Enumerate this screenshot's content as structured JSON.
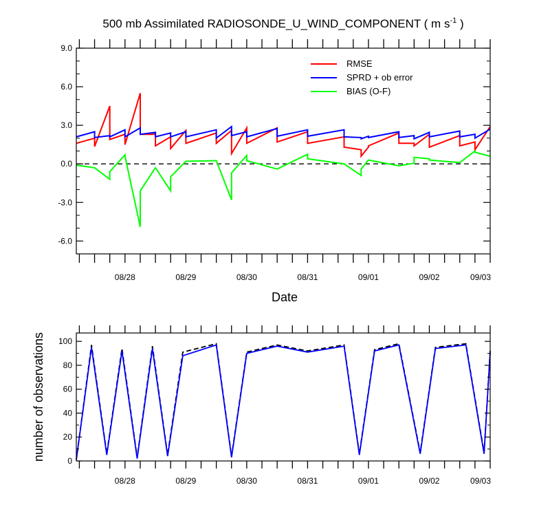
{
  "chart_data": [
    {
      "type": "line",
      "title_parts": {
        "main": "500 mb Assimilated RADIOSONDE_U_WIND_COMPONENT ( m s",
        "sup": "-1",
        "end": " )"
      },
      "xlabel": "Date",
      "ylabel": "",
      "xlim": [
        27.2,
        34.0
      ],
      "ylim": [
        -7.0,
        9.0
      ],
      "yticks": [
        9.0,
        6.0,
        3.0,
        0.0,
        -3.0,
        -6.0
      ],
      "ytick_labels": [
        "9.0",
        "6.0",
        "3.0",
        "0.0",
        "-3.0",
        "-6.0"
      ],
      "xticks": [
        28,
        29,
        30,
        31,
        32,
        33,
        34
      ],
      "xtick_labels": [
        "08/28",
        "08/29",
        "08/30",
        "08/31",
        "09/01",
        "09/02",
        "09/03"
      ],
      "zero_line": true,
      "legend_position": "top-right",
      "series": [
        {
          "name": "RMSE",
          "color": "#ff0000",
          "points": [
            [
              27.2,
              1.6
            ],
            [
              27.5,
              2.0
            ],
            [
              27.5,
              1.35
            ],
            [
              27.75,
              4.5
            ],
            [
              27.75,
              1.9
            ],
            [
              28.0,
              2.3
            ],
            [
              28.0,
              1.5
            ],
            [
              28.25,
              5.5
            ],
            [
              28.25,
              2.3
            ],
            [
              28.5,
              2.3
            ],
            [
              28.5,
              1.4
            ],
            [
              28.75,
              2.1
            ],
            [
              28.75,
              1.2
            ],
            [
              29.0,
              2.6
            ],
            [
              29.0,
              1.6
            ],
            [
              29.5,
              2.4
            ],
            [
              29.5,
              1.6
            ],
            [
              29.75,
              2.6
            ],
            [
              29.75,
              0.8
            ],
            [
              30.0,
              2.8
            ],
            [
              30.0,
              1.6
            ],
            [
              30.5,
              2.8
            ],
            [
              30.5,
              1.7
            ],
            [
              31.0,
              2.5
            ],
            [
              31.0,
              1.6
            ],
            [
              31.6,
              2.1
            ],
            [
              31.6,
              1.3
            ],
            [
              31.88,
              1.1
            ],
            [
              31.88,
              0.6
            ],
            [
              32.0,
              1.3
            ],
            [
              32.0,
              1.4
            ],
            [
              32.5,
              2.4
            ],
            [
              32.5,
              1.6
            ],
            [
              32.75,
              1.6
            ],
            [
              32.75,
              1.4
            ],
            [
              33.0,
              2.3
            ],
            [
              33.0,
              1.3
            ],
            [
              33.5,
              2.2
            ],
            [
              33.5,
              1.4
            ],
            [
              33.75,
              1.7
            ],
            [
              33.75,
              1.1
            ],
            [
              34.0,
              2.9
            ]
          ]
        },
        {
          "name": "SPRD + ob error",
          "color": "#0000ff",
          "points": [
            [
              27.2,
              2.1
            ],
            [
              27.5,
              2.5
            ],
            [
              27.5,
              2.05
            ],
            [
              27.75,
              2.2
            ],
            [
              27.75,
              2.1
            ],
            [
              28.0,
              2.65
            ],
            [
              28.0,
              2.1
            ],
            [
              28.25,
              2.8
            ],
            [
              28.25,
              2.3
            ],
            [
              28.5,
              2.45
            ],
            [
              28.5,
              2.1
            ],
            [
              28.75,
              2.4
            ],
            [
              28.75,
              2.1
            ],
            [
              29.0,
              2.5
            ],
            [
              29.0,
              2.1
            ],
            [
              29.5,
              2.65
            ],
            [
              29.5,
              2.0
            ],
            [
              29.75,
              2.9
            ],
            [
              29.75,
              2.2
            ],
            [
              30.0,
              2.5
            ],
            [
              30.0,
              2.1
            ],
            [
              30.5,
              2.75
            ],
            [
              30.5,
              2.15
            ],
            [
              31.0,
              2.65
            ],
            [
              31.0,
              2.15
            ],
            [
              31.6,
              2.65
            ],
            [
              31.6,
              2.1
            ],
            [
              31.88,
              2.05
            ],
            [
              31.88,
              1.95
            ],
            [
              32.0,
              2.15
            ],
            [
              32.0,
              2.05
            ],
            [
              32.5,
              2.5
            ],
            [
              32.5,
              2.05
            ],
            [
              32.75,
              2.2
            ],
            [
              32.75,
              1.95
            ],
            [
              33.0,
              2.45
            ],
            [
              33.0,
              2.1
            ],
            [
              33.5,
              2.55
            ],
            [
              33.5,
              2.1
            ],
            [
              33.75,
              2.3
            ],
            [
              33.75,
              2.0
            ],
            [
              34.0,
              2.7
            ]
          ]
        },
        {
          "name": "BIAS (O-F)",
          "color": "#00ff00",
          "points": [
            [
              27.2,
              -0.1
            ],
            [
              27.5,
              -0.3
            ],
            [
              27.75,
              -1.2
            ],
            [
              27.75,
              -0.6
            ],
            [
              28.0,
              0.7
            ],
            [
              28.0,
              0.6
            ],
            [
              28.25,
              -4.9
            ],
            [
              28.25,
              -2.1
            ],
            [
              28.5,
              -0.3
            ],
            [
              28.75,
              -2.1
            ],
            [
              28.75,
              -1.0
            ],
            [
              29.0,
              0.2
            ],
            [
              29.5,
              0.25
            ],
            [
              29.75,
              -2.8
            ],
            [
              29.75,
              -0.7
            ],
            [
              30.0,
              0.65
            ],
            [
              30.0,
              0.25
            ],
            [
              30.5,
              -0.4
            ],
            [
              31.0,
              0.75
            ],
            [
              31.0,
              0.4
            ],
            [
              31.6,
              0.0
            ],
            [
              31.88,
              -0.9
            ],
            [
              31.88,
              -0.4
            ],
            [
              32.0,
              0.3
            ],
            [
              32.5,
              -0.15
            ],
            [
              32.75,
              0.05
            ],
            [
              32.75,
              0.5
            ],
            [
              33.0,
              0.4
            ],
            [
              33.0,
              0.3
            ],
            [
              33.5,
              0.1
            ],
            [
              33.75,
              1.0
            ],
            [
              33.75,
              0.9
            ],
            [
              34.0,
              0.6
            ]
          ]
        }
      ]
    },
    {
      "type": "line",
      "ylabel": "number of observations",
      "xlim": [
        27.2,
        34.0
      ],
      "ylim": [
        0,
        107
      ],
      "yticks": [
        0,
        20,
        40,
        60,
        80,
        100
      ],
      "ytick_labels": [
        "0",
        "20",
        "40",
        "60",
        "80",
        "100"
      ],
      "xticks": [
        28,
        29,
        30,
        31,
        32,
        33,
        34
      ],
      "xtick_labels": [
        "08/28",
        "08/29",
        "08/30",
        "08/31",
        "09/01",
        "09/02",
        "09/03"
      ],
      "series": [
        {
          "style": "solid",
          "color": "#0000ff",
          "points": [
            [
              27.2,
              1
            ],
            [
              27.45,
              95
            ],
            [
              27.7,
              5
            ],
            [
              27.95,
              92
            ],
            [
              28.2,
              2
            ],
            [
              28.45,
              94
            ],
            [
              28.7,
              4
            ],
            [
              28.95,
              88
            ],
            [
              29.5,
              97
            ],
            [
              29.75,
              3
            ],
            [
              30.0,
              90
            ],
            [
              30.5,
              96
            ],
            [
              31.0,
              91
            ],
            [
              31.6,
              96
            ],
            [
              31.85,
              5
            ],
            [
              32.1,
              92
            ],
            [
              32.5,
              97
            ],
            [
              32.85,
              6
            ],
            [
              33.1,
              94
            ],
            [
              33.6,
              97
            ],
            [
              33.9,
              6
            ],
            [
              34.0,
              91
            ]
          ]
        },
        {
          "style": "dashed",
          "color": "#000000",
          "points": [
            [
              27.2,
              1
            ],
            [
              27.45,
              97
            ],
            [
              27.7,
              6
            ],
            [
              27.95,
              94
            ],
            [
              28.2,
              3
            ],
            [
              28.45,
              96
            ],
            [
              28.7,
              5
            ],
            [
              28.95,
              91
            ],
            [
              29.5,
              98
            ],
            [
              29.75,
              4
            ],
            [
              30.0,
              91
            ],
            [
              30.5,
              97
            ],
            [
              31.0,
              92
            ],
            [
              31.6,
              97
            ],
            [
              31.85,
              6
            ],
            [
              32.1,
              93
            ],
            [
              32.5,
              98
            ],
            [
              32.85,
              7
            ],
            [
              33.1,
              95
            ],
            [
              33.6,
              98
            ],
            [
              33.9,
              7
            ],
            [
              34.0,
              92
            ]
          ]
        }
      ]
    }
  ]
}
